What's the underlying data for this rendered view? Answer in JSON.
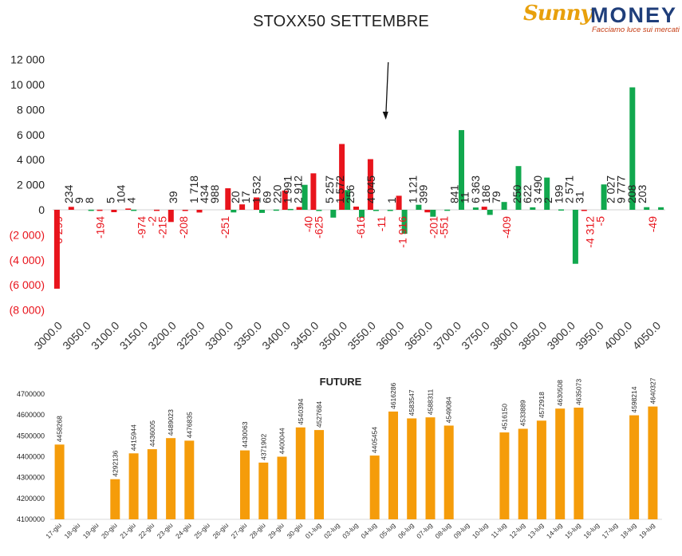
{
  "header": {
    "title": "STOXX50 SETTEMBRE",
    "logo_brand": "Sunny",
    "logo_money": "MONEY",
    "logo_tagline": "Facciamo luce sui mercati"
  },
  "colors": {
    "red": "#e8141c",
    "green": "#11a84e",
    "orange": "#f59c0a",
    "negative_label": "#e8141c",
    "positive_label": "#222222"
  },
  "chart_data": [
    {
      "type": "bar",
      "title": "STOXX50 SETTEMBRE",
      "ylim": [
        -8000,
        12000
      ],
      "yticks": [
        {
          "v": 12000,
          "label": "12 000"
        },
        {
          "v": 10000,
          "label": "10 000"
        },
        {
          "v": 8000,
          "label": "8 000"
        },
        {
          "v": 6000,
          "label": "6 000"
        },
        {
          "v": 4000,
          "label": "4 000"
        },
        {
          "v": 2000,
          "label": "2 000"
        },
        {
          "v": 0,
          "label": "0"
        },
        {
          "v": -2000,
          "label": "(2 000)"
        },
        {
          "v": -4000,
          "label": "(4 000)"
        },
        {
          "v": -6000,
          "label": "(6 000)"
        },
        {
          "v": -8000,
          "label": "(8 000)"
        }
      ],
      "grid": false,
      "annotation": "arrow pointing down near strike 3575",
      "categories": [
        "3000.0",
        "3025",
        "3050.0",
        "3075",
        "3100.0",
        "3125",
        "3150.0",
        "3175",
        "3200.0",
        "3225",
        "3250.0",
        "3275",
        "3300.0",
        "3325",
        "3350.0",
        "3375",
        "3400.0",
        "3425",
        "3450.0",
        "3475",
        "3500.0",
        "3525",
        "3550.0",
        "3575",
        "3600.0",
        "3625",
        "3650.0",
        "3675",
        "3700.0",
        "3725",
        "3750.0",
        "3775",
        "3800.0",
        "3825",
        "3850.0",
        "3875",
        "3900.0",
        "3925",
        "3950.0",
        "3975",
        "4000.0",
        "4025",
        "4050.0"
      ],
      "xtick_labels": [
        "3000.0",
        "3050.0",
        "3100.0",
        "3150.0",
        "3200.0",
        "3250.0",
        "3300.0",
        "3350.0",
        "3400.0",
        "3450.0",
        "3500.0",
        "3550.0",
        "3600.0",
        "3650.0",
        "3700.0",
        "3750.0",
        "3800.0",
        "3850.0",
        "3900.0",
        "3950.0",
        "4000.0",
        "4050.0"
      ],
      "series": [
        {
          "name": "Put",
          "color": "#e8141c",
          "values": [
            -6299,
            234,
            0,
            8,
            -194,
            104,
            0,
            4,
            -974,
            -2,
            -215,
            0,
            1718,
            434,
            988,
            0,
            1532,
            220,
            2912,
            0,
            5257,
            256,
            4045,
            0,
            1121,
            0,
            -201,
            0,
            0,
            0,
            250,
            0,
            0,
            0,
            0,
            0,
            0,
            -5,
            0,
            0,
            0,
            0,
            0
          ]
        },
        {
          "name": "Call",
          "color": "#11a84e",
          "values": [
            0,
            0,
            9,
            0,
            0,
            5,
            0,
            0,
            0,
            0,
            0,
            0,
            -208,
            0,
            -251,
            20,
            69,
            1991,
            -40,
            -625,
            1572,
            -616,
            -11,
            1,
            -1916,
            399,
            -551,
            11,
            6363,
            186,
            -409,
            622,
            3490,
            199,
            2571,
            31,
            -4312,
            0,
            2027,
            0,
            9777,
            208,
            203
          ]
        }
      ],
      "data_labels": [
        {
          "text": "6 299",
          "neg": true,
          "color": "red"
        },
        {
          "text": "234",
          "neg": false,
          "color": "dark"
        },
        {
          "text": "9",
          "neg": false,
          "color": "dark"
        },
        {
          "text": "8",
          "neg": false,
          "color": "dark"
        },
        {
          "text": "-194",
          "neg": true,
          "color": "red"
        },
        {
          "text": "5",
          "neg": false,
          "color": "dark"
        },
        {
          "text": "104",
          "neg": false,
          "color": "dark"
        },
        {
          "text": "4",
          "neg": false,
          "color": "dark"
        },
        {
          "text": "-974",
          "neg": true,
          "color": "red"
        },
        {
          "text": "-2",
          "neg": true,
          "color": "red"
        },
        {
          "text": "-215",
          "neg": true,
          "color": "red"
        },
        {
          "text": "39",
          "neg": false,
          "color": "dark"
        },
        {
          "text": "-208",
          "neg": true,
          "color": "red"
        },
        {
          "text": "1 718",
          "neg": false,
          "color": "dark"
        },
        {
          "text": "434",
          "neg": false,
          "color": "dark"
        },
        {
          "text": "988",
          "neg": false,
          "color": "dark"
        },
        {
          "text": "-251",
          "neg": true,
          "color": "red"
        },
        {
          "text": "20",
          "neg": false,
          "color": "dark"
        },
        {
          "text": "17",
          "neg": false,
          "color": "dark"
        },
        {
          "text": "1 532",
          "neg": false,
          "color": "dark"
        },
        {
          "text": "69",
          "neg": false,
          "color": "dark"
        },
        {
          "text": "220",
          "neg": false,
          "color": "dark"
        },
        {
          "text": "1 991",
          "neg": false,
          "color": "dark"
        },
        {
          "text": "2 912",
          "neg": false,
          "color": "dark"
        },
        {
          "text": "-40",
          "neg": true,
          "color": "red"
        },
        {
          "text": "-625",
          "neg": true,
          "color": "red"
        },
        {
          "text": "5 257",
          "neg": false,
          "color": "dark"
        },
        {
          "text": "1 572",
          "neg": false,
          "color": "dark"
        },
        {
          "text": "256",
          "neg": false,
          "color": "dark"
        },
        {
          "text": "-616",
          "neg": true,
          "color": "red"
        },
        {
          "text": "4 045",
          "neg": false,
          "color": "dark"
        },
        {
          "text": "-11",
          "neg": true,
          "color": "red"
        },
        {
          "text": "1",
          "neg": false,
          "color": "dark"
        },
        {
          "text": "-1 916",
          "neg": true,
          "color": "red"
        },
        {
          "text": "1 121",
          "neg": false,
          "color": "dark"
        },
        {
          "text": "399",
          "neg": false,
          "color": "dark"
        },
        {
          "text": "-201",
          "neg": true,
          "color": "red"
        },
        {
          "text": "-551",
          "neg": true,
          "color": "red"
        },
        {
          "text": "841",
          "neg": false,
          "color": "dark"
        },
        {
          "text": "11",
          "neg": false,
          "color": "dark"
        },
        {
          "text": "6 363",
          "neg": false,
          "color": "dark"
        },
        {
          "text": "186",
          "neg": false,
          "color": "dark"
        },
        {
          "text": "79",
          "neg": false,
          "color": "dark"
        },
        {
          "text": "-409",
          "neg": true,
          "color": "red"
        },
        {
          "text": "250",
          "neg": false,
          "color": "dark"
        },
        {
          "text": "622",
          "neg": false,
          "color": "dark"
        },
        {
          "text": "3 490",
          "neg": false,
          "color": "dark"
        },
        {
          "text": "2",
          "neg": false,
          "color": "dark"
        },
        {
          "text": "199",
          "neg": false,
          "color": "dark"
        },
        {
          "text": "2 571",
          "neg": false,
          "color": "dark"
        },
        {
          "text": "31",
          "neg": false,
          "color": "dark"
        },
        {
          "text": "-4 312",
          "neg": true,
          "color": "red"
        },
        {
          "text": "-5",
          "neg": true,
          "color": "red"
        },
        {
          "text": "2 027",
          "neg": false,
          "color": "dark"
        },
        {
          "text": "9 777",
          "neg": false,
          "color": "dark"
        },
        {
          "text": "208",
          "neg": false,
          "color": "dark"
        },
        {
          "text": "203",
          "neg": false,
          "color": "dark"
        },
        {
          "text": "-49",
          "neg": true,
          "color": "red"
        }
      ]
    },
    {
      "type": "bar",
      "title": "FUTURE",
      "ylim": [
        4100000,
        4700000
      ],
      "yticks": [
        4100000,
        4200000,
        4300000,
        4400000,
        4500000,
        4600000,
        4700000
      ],
      "grid": false,
      "color": "#f59c0a",
      "categories": [
        "17-giu",
        "18-giu",
        "19-giu",
        "20-giu",
        "21-giu",
        "22-giu",
        "23-giu",
        "24-giu",
        "25-giu",
        "26-giu",
        "27-giu",
        "28-giu",
        "29-giu",
        "30-giu",
        "01-lug",
        "02-lug",
        "03-lug",
        "04-lug",
        "05-lug",
        "06-lug",
        "07-lug",
        "08-lug",
        "09-lug",
        "10-lug",
        "11-lug",
        "12-lug",
        "13-lug",
        "14-lug",
        "15-lug",
        "16-lug",
        "17-lug",
        "18-lug",
        "19-lug"
      ],
      "values": [
        4458268,
        null,
        null,
        4292136,
        4415944,
        4436005,
        4489023,
        4476835,
        null,
        null,
        4430063,
        4371902,
        4400044,
        4540394,
        4527684,
        null,
        null,
        4405454,
        4616286,
        4583547,
        4588311,
        4549084,
        null,
        null,
        4516150,
        4533889,
        4572918,
        4630508,
        4635073,
        null,
        null,
        4598214,
        4640327
      ]
    }
  ]
}
